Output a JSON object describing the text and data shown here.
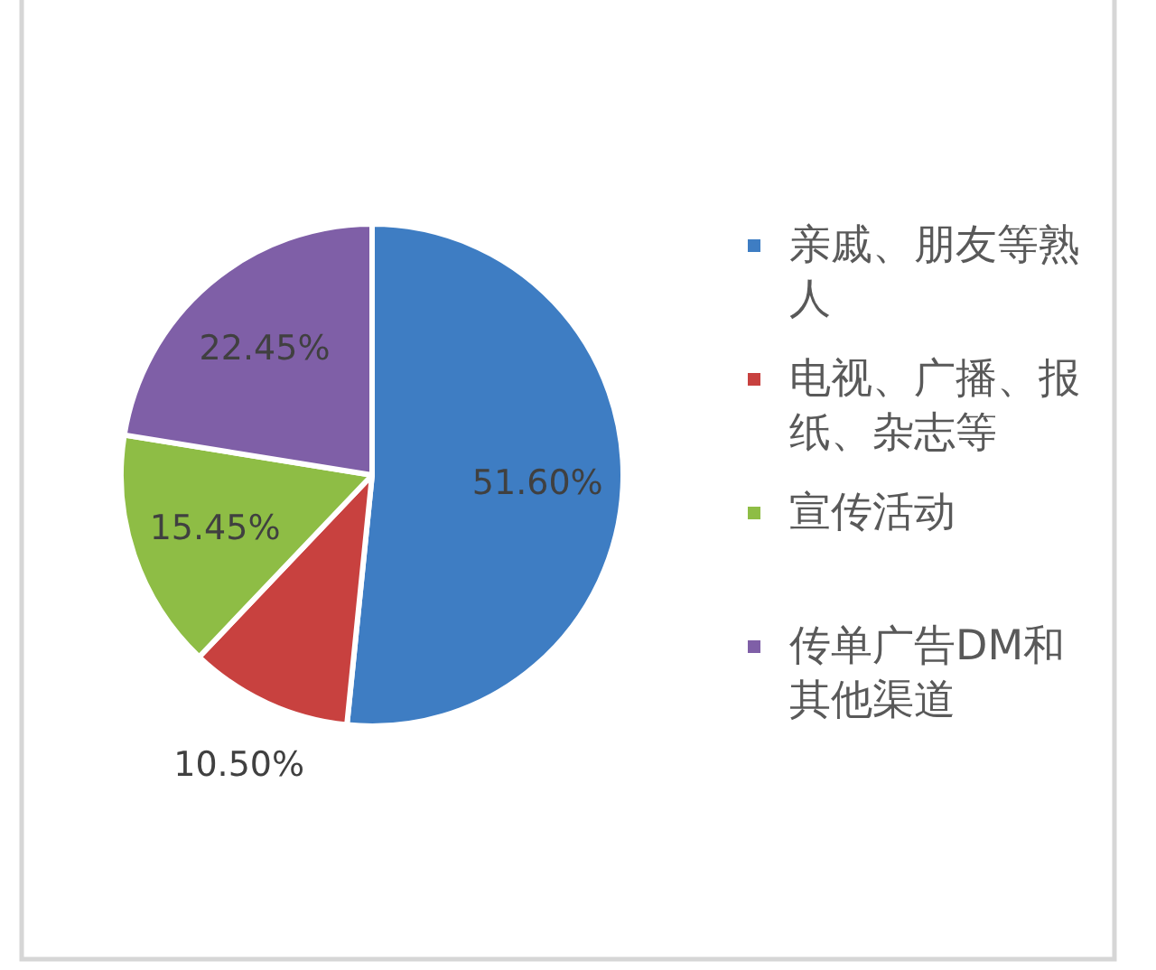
{
  "chart_data": {
    "type": "pie",
    "categories": [
      "亲戚、朋友等熟人",
      "电视、广播、报纸、杂志等",
      "宣传活动",
      "传单广告DM和其他渠道"
    ],
    "values": [
      51.6,
      10.5,
      15.45,
      22.45
    ],
    "colors": [
      "#3e7dc3",
      "#c8413f",
      "#8ebd45",
      "#7f5fa7"
    ],
    "value_labels": [
      "51.60%",
      "10.50%",
      "15.45%",
      "22.45%"
    ],
    "legend": "right"
  }
}
